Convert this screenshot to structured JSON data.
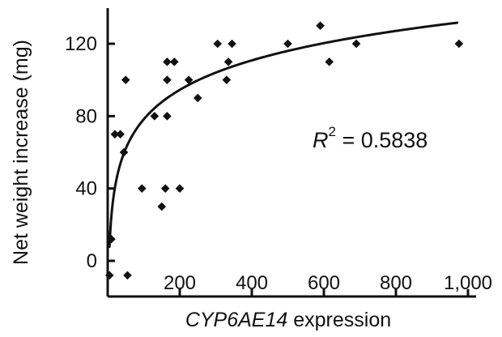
{
  "chart_data": {
    "type": "scatter",
    "title": "",
    "xlabel": {
      "italic_part": "CYP6AE14",
      "plain_part": " expression"
    },
    "ylabel": "Net weight increase (mg)",
    "xlim": [
      0,
      1000
    ],
    "ylim": [
      0,
      140
    ],
    "x_ticks": [
      200,
      400,
      600,
      800,
      1000
    ],
    "x_tick_labels": [
      "200",
      "400",
      "600",
      "800",
      "1,000"
    ],
    "y_ticks": [
      0,
      40,
      80,
      120
    ],
    "y_tick_labels": [
      "0",
      "40",
      "80",
      "120"
    ],
    "points": [
      {
        "x": 5,
        "y": -8
      },
      {
        "x": 10,
        "y": 12
      },
      {
        "x": 20,
        "y": 70
      },
      {
        "x": 35,
        "y": 70
      },
      {
        "x": 45,
        "y": 60
      },
      {
        "x": 50,
        "y": 100
      },
      {
        "x": 55,
        "y": -8
      },
      {
        "x": 95,
        "y": 40
      },
      {
        "x": 130,
        "y": 80
      },
      {
        "x": 150,
        "y": 30
      },
      {
        "x": 160,
        "y": 40
      },
      {
        "x": 165,
        "y": 80
      },
      {
        "x": 165,
        "y": 100
      },
      {
        "x": 165,
        "y": 110
      },
      {
        "x": 185,
        "y": 110
      },
      {
        "x": 200,
        "y": 40
      },
      {
        "x": 225,
        "y": 100
      },
      {
        "x": 250,
        "y": 90
      },
      {
        "x": 305,
        "y": 120
      },
      {
        "x": 330,
        "y": 100
      },
      {
        "x": 335,
        "y": 110
      },
      {
        "x": 345,
        "y": 120
      },
      {
        "x": 500,
        "y": 120
      },
      {
        "x": 590,
        "y": 130
      },
      {
        "x": 615,
        "y": 110
      },
      {
        "x": 690,
        "y": 120
      },
      {
        "x": 975,
        "y": 120
      }
    ],
    "fit_curve": {
      "type": "logarithmic",
      "label_prefix": "R",
      "label_superscript": "2",
      "label_value": " = 0.5838"
    },
    "grid": false,
    "legend": "none"
  }
}
